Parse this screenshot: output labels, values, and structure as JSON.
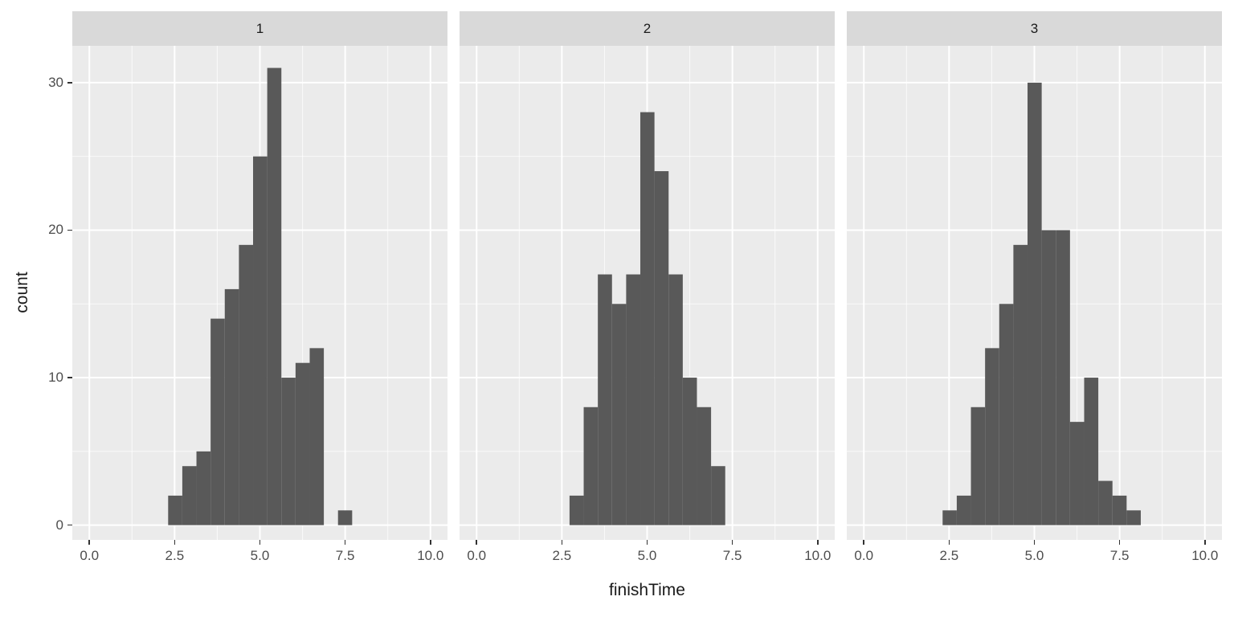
{
  "figure": {
    "background": "#FFFFFF"
  },
  "chart_data": {
    "type": "bar",
    "subtype": "faceted-histogram",
    "title": "",
    "xlabel": "finishTime",
    "ylabel": "count",
    "facet_labels": [
      "1",
      "2",
      "3"
    ],
    "xlim": [
      -0.5,
      10.5
    ],
    "ylim": [
      -1.0,
      32.5
    ],
    "x_tick_values": [
      0,
      2.5,
      5,
      7.5,
      10
    ],
    "x_tick_labels": [
      "0.0",
      "2.5",
      "5.0",
      "7.5",
      "10.0"
    ],
    "x_minor_ticks": [
      1.25,
      3.75,
      6.25,
      8.75
    ],
    "y_tick_values": [
      0,
      10,
      20,
      30
    ],
    "y_tick_labels": [
      "0",
      "10",
      "20",
      "30"
    ],
    "y_minor_ticks": [
      5,
      15,
      25
    ],
    "grid": "on",
    "legend": "none",
    "bins": {
      "start": 2.31,
      "width": 0.415,
      "count": 14
    },
    "facets": [
      {
        "label": "1",
        "counts": [
          2,
          4,
          5,
          14,
          16,
          19,
          25,
          31,
          10,
          11,
          12,
          0,
          1,
          0
        ]
      },
      {
        "label": "2",
        "counts": [
          0,
          2,
          8,
          17,
          15,
          17,
          28,
          24,
          17,
          10,
          8,
          4,
          0,
          0
        ]
      },
      {
        "label": "3",
        "counts": [
          1,
          2,
          8,
          12,
          15,
          19,
          30,
          20,
          20,
          7,
          10,
          3,
          2,
          1
        ]
      }
    ],
    "colors": {
      "bar_fill": "#595959",
      "panel_background": "#EBEBEB",
      "strip_background": "#D9D9D9",
      "grid_major": "#FFFFFF",
      "grid_minor": "#FFFFFF",
      "tick_label": "#4D4D4D",
      "axis_title": "#1A1A1A",
      "tick_mark": "#333333"
    }
  }
}
